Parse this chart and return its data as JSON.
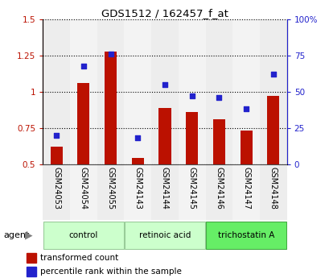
{
  "title": "GDS1512 / 162457_f_at",
  "categories": [
    "GSM24053",
    "GSM24054",
    "GSM24055",
    "GSM24143",
    "GSM24144",
    "GSM24145",
    "GSM24146",
    "GSM24147",
    "GSM24148"
  ],
  "bar_values": [
    0.62,
    1.06,
    1.28,
    0.54,
    0.89,
    0.86,
    0.81,
    0.73,
    0.97
  ],
  "dot_values": [
    20,
    68,
    76,
    18,
    55,
    47,
    46,
    38,
    62
  ],
  "bar_color": "#bb1100",
  "dot_color": "#2222cc",
  "ylim_left": [
    0.5,
    1.5
  ],
  "ylim_right": [
    0,
    100
  ],
  "yticks_left": [
    0.5,
    0.75,
    1.0,
    1.25,
    1.5
  ],
  "yticks_right": [
    0,
    25,
    50,
    75,
    100
  ],
  "yticklabels_left": [
    "0.5",
    "0.75",
    "1",
    "1.25",
    "1.5"
  ],
  "yticklabels_right": [
    "0",
    "25",
    "50",
    "75",
    "100%"
  ],
  "group_configs": [
    {
      "indices": [
        0,
        1,
        2
      ],
      "label": "control",
      "color": "#ccffcc",
      "border": "#99cc99"
    },
    {
      "indices": [
        3,
        4,
        5
      ],
      "label": "retinoic acid",
      "color": "#ccffcc",
      "border": "#99cc99"
    },
    {
      "indices": [
        6,
        7,
        8
      ],
      "label": "trichostatin A",
      "color": "#66ee66",
      "border": "#44aa44"
    }
  ],
  "agent_label": "agent",
  "legend_items": [
    {
      "label": "transformed count",
      "color": "#bb1100"
    },
    {
      "label": "percentile rank within the sample",
      "color": "#2222cc"
    }
  ],
  "col_bg_even": "#cccccc",
  "col_bg_odd": "#dddddd",
  "col_bg_alpha": 0.35,
  "bar_width": 0.45,
  "bar_bottom": 0.5
}
